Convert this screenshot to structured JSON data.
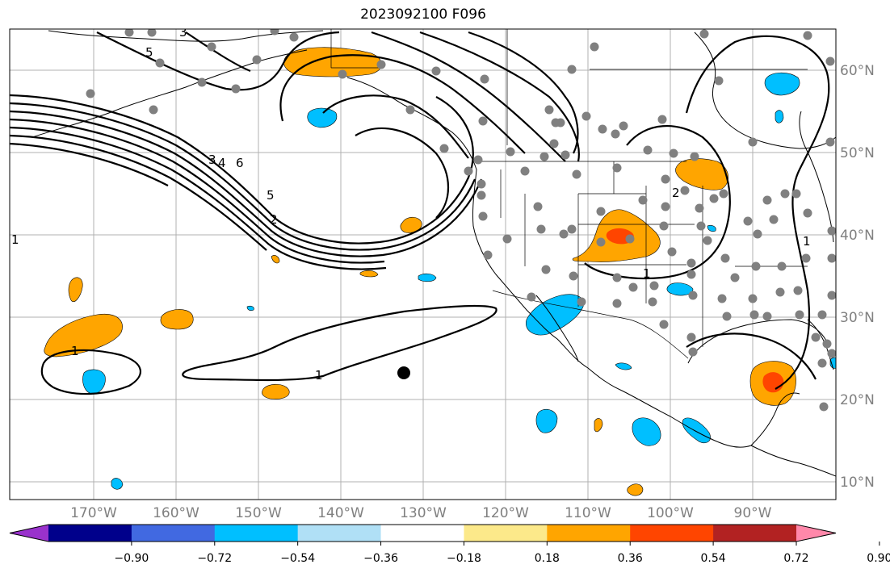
{
  "title": "2023092100 F096",
  "lon_labels": [
    "170°W",
    "160°W",
    "150°W",
    "140°W",
    "130°W",
    "120°W",
    "110°W",
    "100°W",
    "90°W"
  ],
  "lat_labels": [
    "60°N",
    "50°N",
    "40°N",
    "30°N",
    "20°N",
    "10°N"
  ],
  "colorbar": {
    "ticks": [
      "−0.90",
      "−0.72",
      "−0.54",
      "−0.36",
      "−0.18",
      "0.18",
      "0.36",
      "0.54",
      "0.72",
      "0.90"
    ],
    "colors": [
      "#9932cc",
      "#00008b",
      "#4169e1",
      "#00bfff",
      "#b0e0f6",
      "#ffffff",
      "#fce98a",
      "#ffa500",
      "#ff4500",
      "#b22222",
      "#ff88aa"
    ]
  },
  "contour_labels": {
    "l1": "1",
    "l3": "3",
    "l4": "4",
    "l6": "6",
    "l5": "5",
    "l2": "2",
    "l5b": "5",
    "l3b": "3",
    "l1b": "1",
    "l1c": "1",
    "l1d": "1",
    "l1e": "1",
    "l2b": "2"
  },
  "colors": {
    "orange": "#ffa500",
    "red": "#ff4500",
    "blue": "#00bfff",
    "dots": "#808080"
  }
}
